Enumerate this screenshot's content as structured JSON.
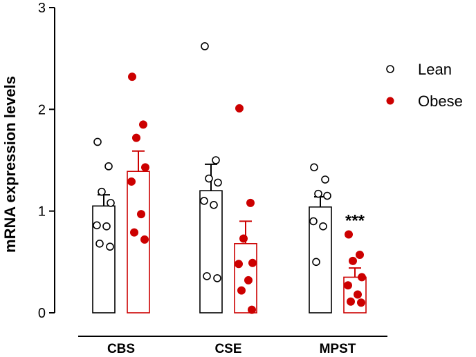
{
  "chart_data": {
    "type": "bar",
    "title": "",
    "xlabel": "",
    "ylabel": "mRNA expression levels",
    "ylim": [
      0,
      3
    ],
    "yticks": [
      "0",
      "1",
      "2",
      "3"
    ],
    "grid": false,
    "legend_position": "top-right",
    "categories": [
      "CBS",
      "CSE",
      "MPST"
    ],
    "series": [
      {
        "name": "Lean",
        "color": "#000000",
        "marker": "open-circle",
        "values": [
          1.05,
          1.2,
          1.04
        ],
        "errors": [
          0.11,
          0.26,
          0.1
        ],
        "points": [
          [
            1.68,
            1.44,
            1.19,
            1.08,
            0.86,
            0.85,
            0.68,
            0.65
          ],
          [
            2.62,
            1.5,
            1.32,
            1.28,
            1.1,
            1.06,
            0.36,
            0.34
          ],
          [
            1.43,
            1.31,
            1.17,
            1.15,
            0.9,
            0.85,
            0.5
          ]
        ]
      },
      {
        "name": "Obese",
        "color": "#cc0000",
        "marker": "filled-circle",
        "values": [
          1.39,
          0.68,
          0.35
        ],
        "errors": [
          0.2,
          0.22,
          0.09
        ],
        "points": [
          [
            2.32,
            1.85,
            1.72,
            1.43,
            1.29,
            0.97,
            0.79,
            0.72
          ],
          [
            2.01,
            1.08,
            0.73,
            0.49,
            0.48,
            0.32,
            0.22,
            0.03
          ],
          [
            0.77,
            0.57,
            0.51,
            0.35,
            0.27,
            0.18,
            0.11,
            0.1
          ]
        ]
      }
    ],
    "annotations": [
      {
        "category": "MPST",
        "series": "Obese",
        "text": "***"
      }
    ]
  }
}
